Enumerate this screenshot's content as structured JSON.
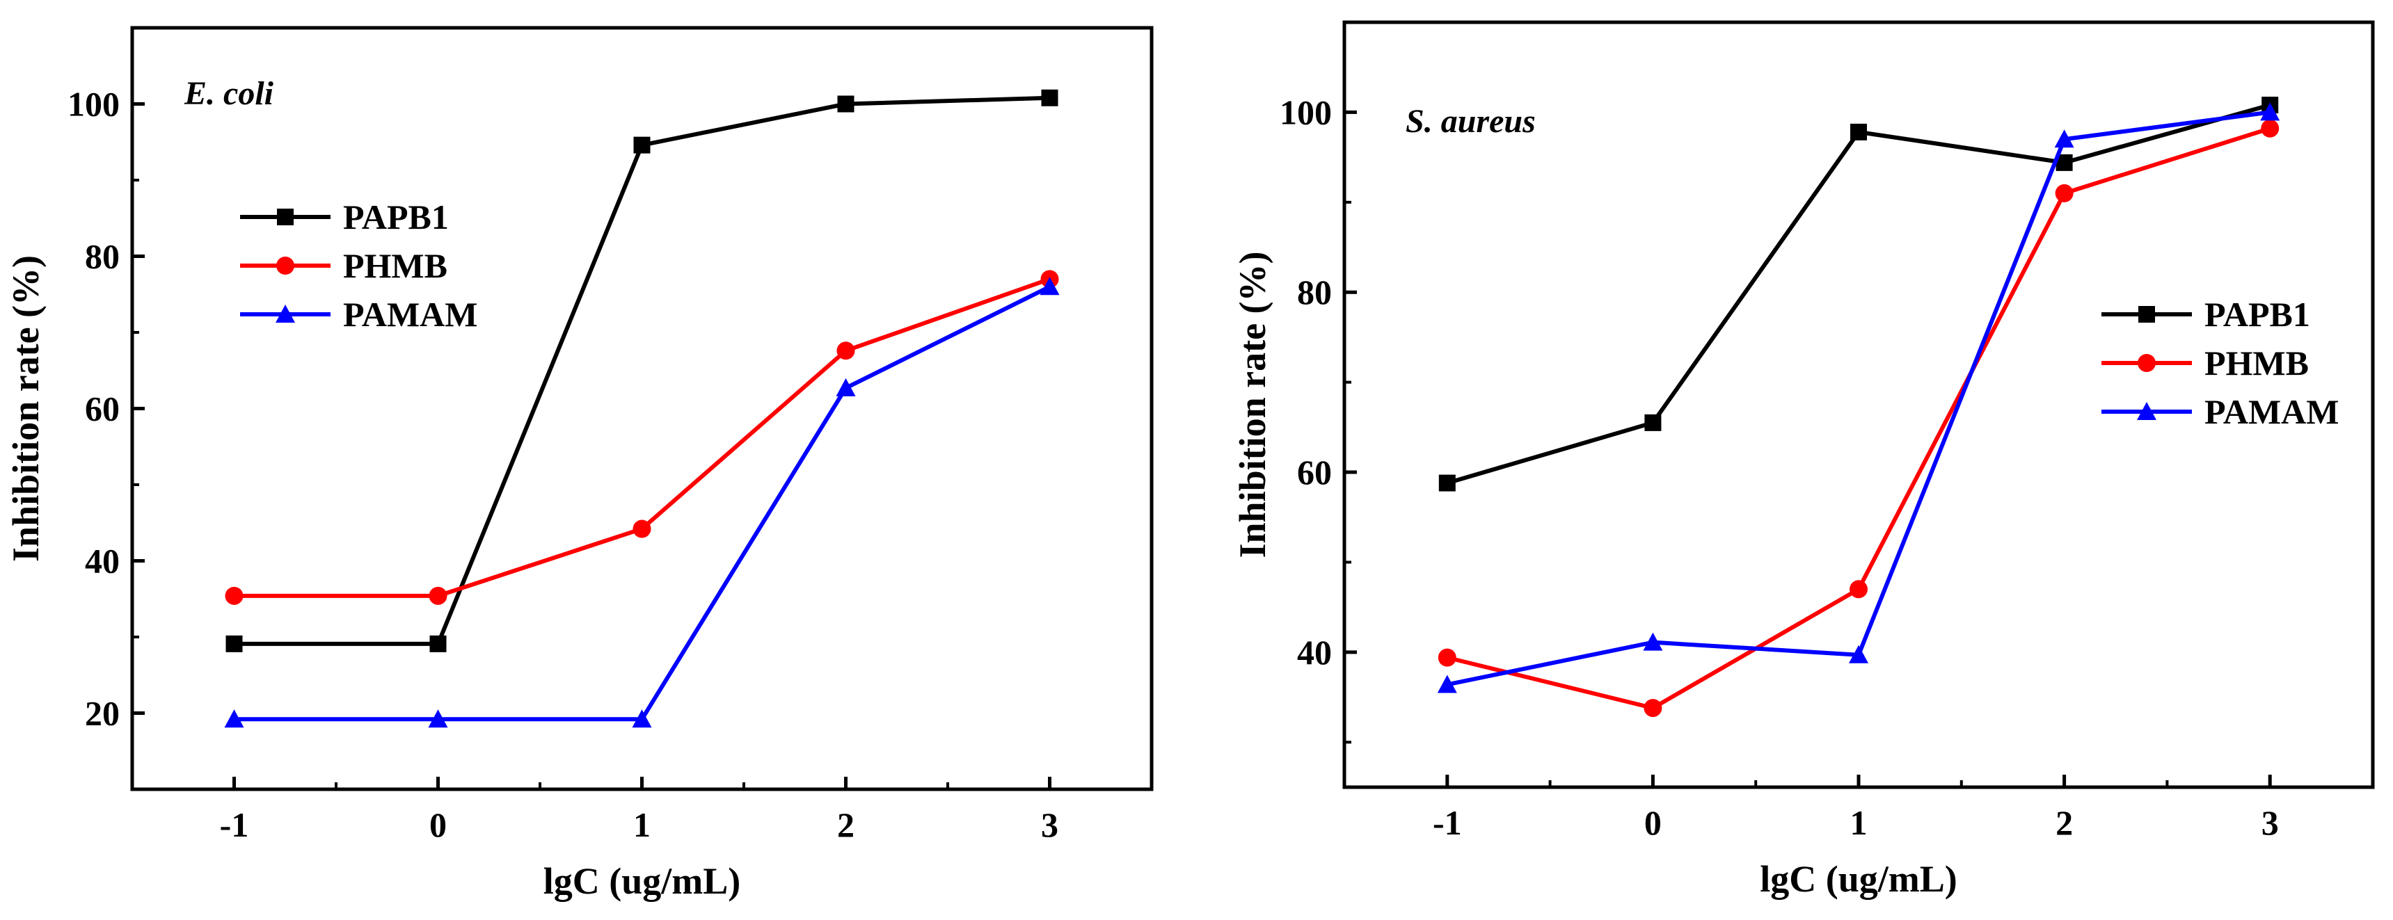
{
  "chart_data": [
    {
      "type": "line",
      "panel_label": "E. coli",
      "xlabel": "lgC (ug/mL)",
      "ylabel": "Inhibition rate (%)",
      "x": [
        -1,
        0,
        1,
        2,
        3
      ],
      "xticks": [
        "-1",
        "0",
        "1",
        "2",
        "3"
      ],
      "xlim": [
        -1.5,
        3.5
      ],
      "ylim": [
        10,
        110
      ],
      "yticks": [
        20,
        40,
        60,
        80,
        100
      ],
      "yminor": [
        30,
        50,
        70,
        90
      ],
      "legend_position": "upper-left",
      "series": [
        {
          "name": "PAPB1",
          "color": "#000000",
          "marker": "square",
          "values": [
            29.1,
            29.1,
            94.6,
            100.0,
            100.8
          ]
        },
        {
          "name": "PHMB",
          "color": "#ff0000",
          "marker": "circle",
          "values": [
            35.4,
            35.4,
            44.2,
            67.6,
            77.0
          ]
        },
        {
          "name": "PAMAM",
          "color": "#0000ff",
          "marker": "triangle",
          "values": [
            19.2,
            19.2,
            19.2,
            62.7,
            76.0
          ]
        }
      ]
    },
    {
      "type": "line",
      "panel_label": "S. aureus",
      "xlabel": "lgC (ug/mL)",
      "ylabel": "Inhibition rate (%)",
      "x": [
        -1,
        0,
        1,
        2,
        3
      ],
      "xticks": [
        "-1",
        "0",
        "1",
        "2",
        "3"
      ],
      "xlim": [
        -1.5,
        3.5
      ],
      "ylim": [
        25,
        110
      ],
      "yticks": [
        40,
        60,
        80,
        100
      ],
      "yminor": [
        30,
        50,
        70,
        90
      ],
      "legend_position": "right",
      "series": [
        {
          "name": "PAPB1",
          "color": "#000000",
          "marker": "square",
          "values": [
            58.8,
            65.5,
            97.8,
            94.4,
            100.8
          ]
        },
        {
          "name": "PHMB",
          "color": "#ff0000",
          "marker": "circle",
          "values": [
            39.4,
            33.8,
            47.0,
            91.0,
            98.2
          ]
        },
        {
          "name": "PAMAM",
          "color": "#0000ff",
          "marker": "triangle",
          "values": [
            36.4,
            41.1,
            39.7,
            97.0,
            100.0
          ]
        }
      ]
    }
  ]
}
